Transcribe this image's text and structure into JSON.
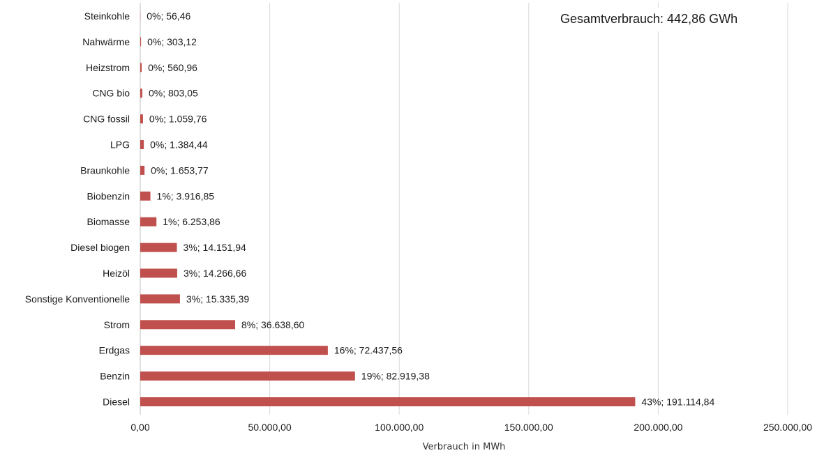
{
  "chart_data": {
    "type": "bar",
    "orientation": "horizontal",
    "annotation": "Gesamtverbrauch: 442,86 GWh",
    "xlabel": "Verbrauch in MWh",
    "ylabel": "",
    "xlim": [
      0,
      250000
    ],
    "xticks": [
      0,
      50000,
      100000,
      150000,
      200000,
      250000
    ],
    "xtick_labels": [
      "0,00",
      "50.000,00",
      "100.000,00",
      "150.000,00",
      "200.000,00",
      "250.000,00"
    ],
    "grid": "vertical",
    "bar_color": "#c0504d",
    "categories": [
      "Steinkohle",
      "Nahwärme",
      "Heizstrom",
      "CNG bio",
      "CNG fossil",
      "LPG",
      "Braunkohle",
      "Biobenzin",
      "Biomasse",
      "Diesel biogen",
      "Heizöl",
      "Sonstige Konventionelle",
      "Strom",
      "Erdgas",
      "Benzin",
      "Diesel"
    ],
    "values": [
      56.46,
      303.12,
      560.96,
      803.05,
      1059.76,
      1384.44,
      1653.77,
      3916.85,
      6253.86,
      14151.94,
      14266.66,
      15335.39,
      36638.6,
      72437.56,
      82919.38,
      191114.84
    ],
    "data_labels": [
      "0%; 56,46",
      "0%; 303,12",
      "0%; 560,96",
      "0%; 803,05",
      "0%; 1.059,76",
      "0%; 1.384,44",
      "0%; 1.653,77",
      "1%; 3.916,85",
      "1%; 6.253,86",
      "3%; 14.151,94",
      "3%; 14.266,66",
      "3%; 15.335,39",
      "8%; 36.638,60",
      "16%; 72.437,56",
      "19%; 82.919,38",
      "43%; 191.114,84"
    ]
  }
}
